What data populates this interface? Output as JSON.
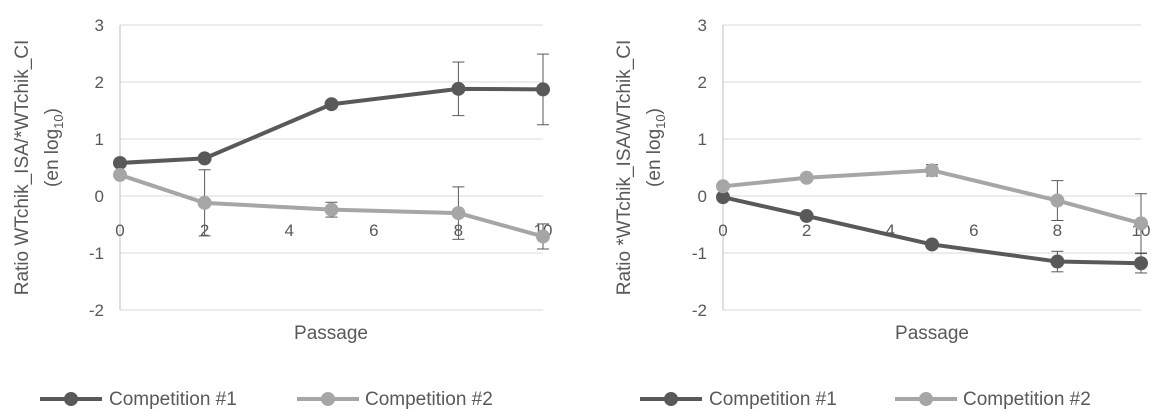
{
  "chart_data": [
    {
      "type": "line",
      "title": "",
      "xlabel": "Passage",
      "ylabel_main": "Ratio WTchik_ISA/*WTchik_CI",
      "ylabel_unit_prefix": "(en log",
      "ylabel_unit_sub": "10",
      "ylabel_unit_suffix": ")",
      "xlim": [
        0,
        10
      ],
      "ylim": [
        -2,
        3
      ],
      "x_ticks": [
        0,
        2,
        4,
        6,
        8,
        10
      ],
      "x_tick_labels": [
        "0",
        "2",
        "4",
        "6",
        "8",
        "10"
      ],
      "y_ticks": [
        -2,
        -1,
        0,
        1,
        2,
        3
      ],
      "y_tick_labels": [
        "-2",
        "-1",
        "0",
        "1",
        "2",
        "3"
      ],
      "grid": "horizontal",
      "legend_position": "bottom",
      "series": [
        {
          "name": "Competition #1",
          "color": "#595959",
          "x": [
            0,
            2,
            5,
            8,
            10
          ],
          "y": [
            0.58,
            0.66,
            1.61,
            1.88,
            1.87
          ],
          "err": [
            0,
            0,
            0,
            0.47,
            0.62
          ]
        },
        {
          "name": "Competition #2",
          "color": "#a6a6a6",
          "x": [
            0,
            2,
            5,
            8,
            10
          ],
          "y": [
            0.37,
            -0.12,
            -0.24,
            -0.3,
            -0.71
          ],
          "err": [
            0,
            0.58,
            0.13,
            0.46,
            0.22
          ]
        }
      ]
    },
    {
      "type": "line",
      "title": "",
      "xlabel": "Passage",
      "ylabel_main": "Ratio *WTchik_ISA/WTchik_CI",
      "ylabel_unit_prefix": "(en log",
      "ylabel_unit_sub": "10",
      "ylabel_unit_suffix": ")",
      "xlim": [
        0,
        10
      ],
      "ylim": [
        -2,
        3
      ],
      "x_ticks": [
        0,
        2,
        4,
        6,
        8,
        10
      ],
      "x_tick_labels": [
        "0",
        "2",
        "4",
        "6",
        "8",
        "10"
      ],
      "y_ticks": [
        -2,
        -1,
        0,
        1,
        2,
        3
      ],
      "y_tick_labels": [
        "-2",
        "-1",
        "0",
        "1",
        "2",
        "3"
      ],
      "grid": "horizontal",
      "legend_position": "bottom",
      "series": [
        {
          "name": "Competition #1",
          "color": "#595959",
          "x": [
            0,
            2,
            5,
            8,
            10
          ],
          "y": [
            -0.02,
            -0.35,
            -0.85,
            -1.15,
            -1.18
          ],
          "err": [
            0,
            0,
            0,
            0.18,
            0.17
          ]
        },
        {
          "name": "Competition #2",
          "color": "#a6a6a6",
          "x": [
            0,
            2,
            5,
            8,
            10
          ],
          "y": [
            0.17,
            0.32,
            0.45,
            -0.08,
            -0.48
          ],
          "err": [
            0,
            0,
            0.1,
            0.35,
            0.52
          ]
        }
      ]
    }
  ]
}
